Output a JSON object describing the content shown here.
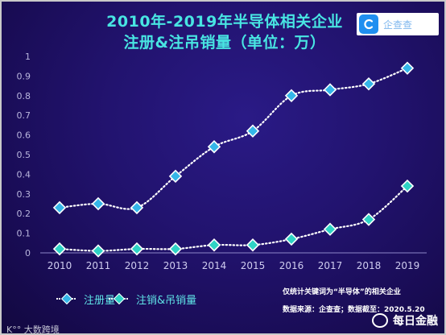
{
  "title": {
    "line1": "2010年-2019年半导体相关企业",
    "line2": "注册&注吊销量（单位：万）"
  },
  "logo": {
    "text": "企查查"
  },
  "chart_data": {
    "type": "line",
    "x": [
      "2010",
      "2011",
      "2012",
      "2013",
      "2014",
      "2015",
      "2016",
      "2017",
      "2018",
      "2019"
    ],
    "series": [
      {
        "name": "注册量",
        "values": [
          0.23,
          0.25,
          0.23,
          0.39,
          0.54,
          0.62,
          0.8,
          0.83,
          0.86,
          0.94
        ],
        "color": "#35b6e8"
      },
      {
        "name": "注销&吊销量",
        "values": [
          0.02,
          0.01,
          0.02,
          0.02,
          0.04,
          0.04,
          0.07,
          0.12,
          0.17,
          0.34
        ],
        "color": "#2fd3c5"
      }
    ],
    "y_ticks": [
      "0",
      "0.1",
      "0.2",
      "0.3",
      "0.4",
      "0.5",
      "0.6",
      "0.7",
      "0.8",
      "0.9",
      "1"
    ],
    "ylim": [
      0,
      1
    ],
    "grid": false,
    "line_style": "dotted",
    "legend_position": "bottom-left"
  },
  "notes": {
    "line1": "仅统计关键词为“半导体”的相关企业",
    "line2": "数据来源：企查查；数据截至：2020.5.20"
  },
  "source_badge": "大数跨境",
  "watermark": "每日金融"
}
